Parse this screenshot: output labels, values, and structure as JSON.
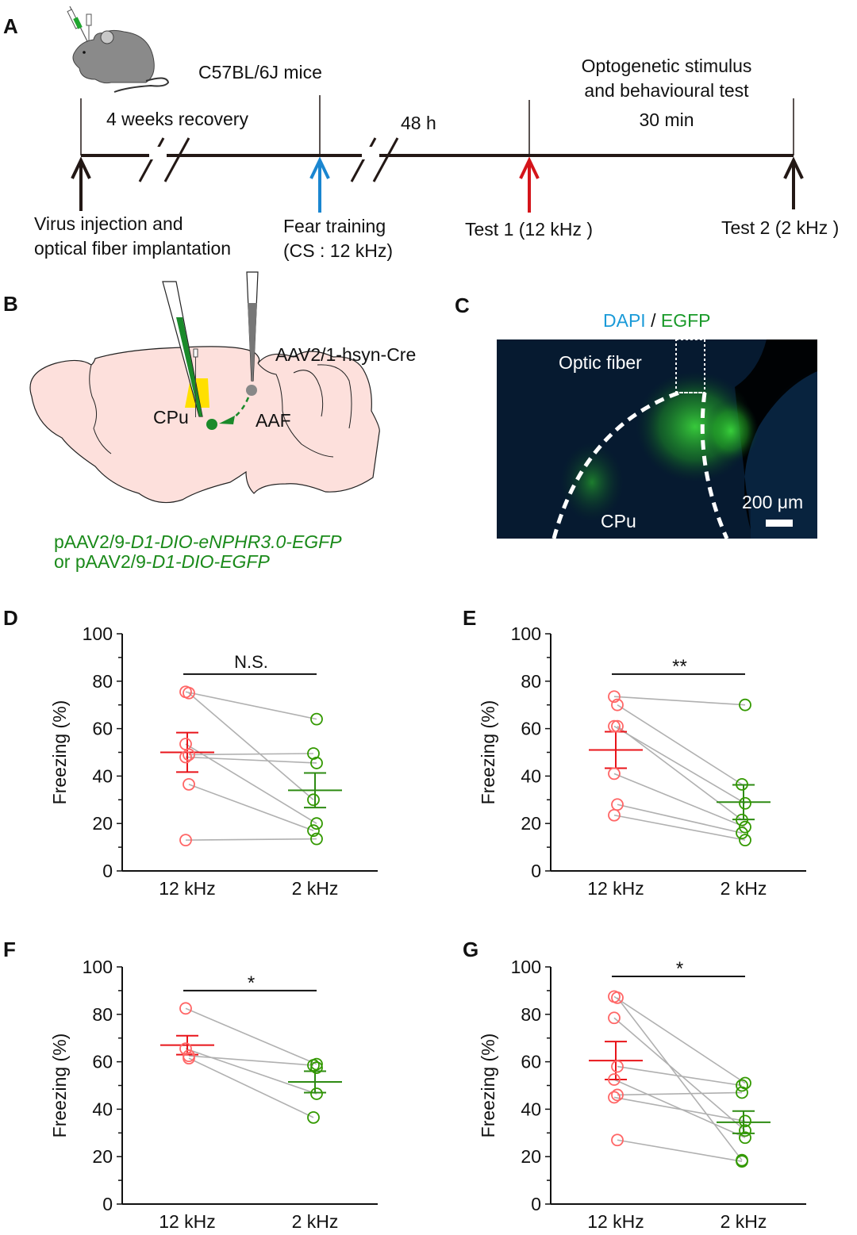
{
  "panels": {
    "A": {
      "label": "A",
      "strain": "C57BL/6J mice",
      "intervals": [
        "4 weeks recovery",
        "48 h"
      ],
      "stim_title_line1": "Optogenetic stimulus",
      "stim_title_line2": "and behavioural test",
      "stim_duration": "30 min",
      "events": [
        {
          "line1": "Virus injection and",
          "line2": "optical fiber implantation",
          "arrow_color": "#231815"
        },
        {
          "line1": "Fear training",
          "line2": "(CS : 12 kHz)",
          "arrow_color": "#1a86d0"
        },
        {
          "line1": "Test 1 (12 kHz )",
          "line2": "",
          "arrow_color": "#d4141a"
        },
        {
          "line1": "Test 2 (2 kHz )",
          "line2": "",
          "arrow_color": "#231815"
        }
      ]
    },
    "B": {
      "label": "B",
      "cre_virus": "AAV2/1-hsyn-Cre",
      "region_cpu": "CPu",
      "region_aaf": "AAF",
      "vector_line1_prefix": "pAAV2/9-",
      "vector_line1_italic": "D1-DIO-eNPHR3.0-EGFP",
      "vector_line2_prefix": "or pAAV2/9-",
      "vector_line2_italic": "D1-DIO-EGFP",
      "colors": {
        "brain": "#fde0dc",
        "virus_green": "#1a8a2a",
        "light_yellow": "#ffe000",
        "cre_gray": "#888888"
      }
    },
    "C": {
      "label": "C",
      "stain_dapi": "DAPI",
      "stain_sep": " / ",
      "stain_egfp": "EGFP",
      "fiber_label": "Optic fiber",
      "region_label": "CPu",
      "scale_bar": "200 μm",
      "colors": {
        "dapi": "#1a9ad8",
        "egfp": "#1a9a2a"
      }
    }
  },
  "chart_data": [
    {
      "panel": "D",
      "type": "scatter",
      "title": "",
      "xlabel": "",
      "ylabel": "Freezing (%)",
      "categories": [
        "12 kHz",
        "2 kHz"
      ],
      "ylim": [
        0,
        100
      ],
      "yticks": [
        0,
        20,
        40,
        60,
        80,
        100
      ],
      "significance": "N.S.",
      "pairs": [
        [
          75.5,
          64
        ],
        [
          75,
          30
        ],
        [
          53.5,
          20
        ],
        [
          49,
          49.5
        ],
        [
          48,
          45.5
        ],
        [
          36.5,
          17
        ],
        [
          13,
          13.5
        ]
      ],
      "mean": [
        50,
        34
      ],
      "sem": [
        8.3,
        7.3
      ],
      "colors": {
        "12 kHz": "#ff6666",
        "2 kHz": "#339900",
        "mean_12": "#e8141a",
        "mean_2": "#2e8b13",
        "pair_line": "#b0b0b0"
      }
    },
    {
      "panel": "E",
      "type": "scatter",
      "title": "",
      "xlabel": "",
      "ylabel": "Freezing (%)",
      "categories": [
        "12 kHz",
        "2 kHz"
      ],
      "ylim": [
        0,
        100
      ],
      "yticks": [
        0,
        20,
        40,
        60,
        80,
        100
      ],
      "significance": "**",
      "pairs": [
        [
          73.5,
          70
        ],
        [
          70,
          36.5
        ],
        [
          61,
          28.5
        ],
        [
          61,
          21.5
        ],
        [
          41,
          18.5
        ],
        [
          28,
          16
        ],
        [
          23.5,
          13
        ]
      ],
      "mean": [
        51,
        29
      ],
      "sem": [
        7.7,
        7.3
      ],
      "colors": {
        "12 kHz": "#ff6666",
        "2 kHz": "#339900",
        "mean_12": "#e8141a",
        "mean_2": "#2e8b13",
        "pair_line": "#b0b0b0"
      }
    },
    {
      "panel": "F",
      "type": "scatter",
      "title": "",
      "xlabel": "",
      "ylabel": "Freezing (%)",
      "categories": [
        "12 kHz",
        "2 kHz"
      ],
      "ylim": [
        0,
        100
      ],
      "yticks": [
        0,
        20,
        40,
        60,
        80,
        100
      ],
      "significance": "*",
      "pairs": [
        [
          82.5,
          59
        ],
        [
          62.5,
          58.5
        ],
        [
          65.5,
          46.5
        ],
        [
          61.5,
          36.5
        ]
      ],
      "extra_2khz": [
        57.5
      ],
      "mean": [
        67,
        51.5
      ],
      "sem": [
        4,
        4.5
      ],
      "colors": {
        "12 kHz": "#ff6666",
        "2 kHz": "#339900",
        "mean_12": "#e8141a",
        "mean_2": "#2e8b13",
        "pair_line": "#b0b0b0"
      }
    },
    {
      "panel": "G",
      "type": "scatter",
      "title": "",
      "xlabel": "",
      "ylabel": "Freezing (%)",
      "categories": [
        "12 kHz",
        "2 kHz"
      ],
      "ylim": [
        0,
        100
      ],
      "yticks": [
        0,
        20,
        40,
        60,
        80,
        100
      ],
      "significance": "*",
      "pairs": [
        [
          87.5,
          51
        ],
        [
          87,
          18.5
        ],
        [
          78.5,
          31
        ],
        [
          58,
          50
        ],
        [
          52.5,
          28
        ],
        [
          46,
          47
        ],
        [
          45,
          35
        ],
        [
          27,
          18
        ]
      ],
      "mean": [
        60.5,
        34.5
      ],
      "sem": [
        8,
        4.7
      ],
      "colors": {
        "12 kHz": "#ff6666",
        "2 kHz": "#339900",
        "mean_12": "#e8141a",
        "mean_2": "#2e8b13",
        "pair_line": "#b0b0b0"
      }
    }
  ]
}
